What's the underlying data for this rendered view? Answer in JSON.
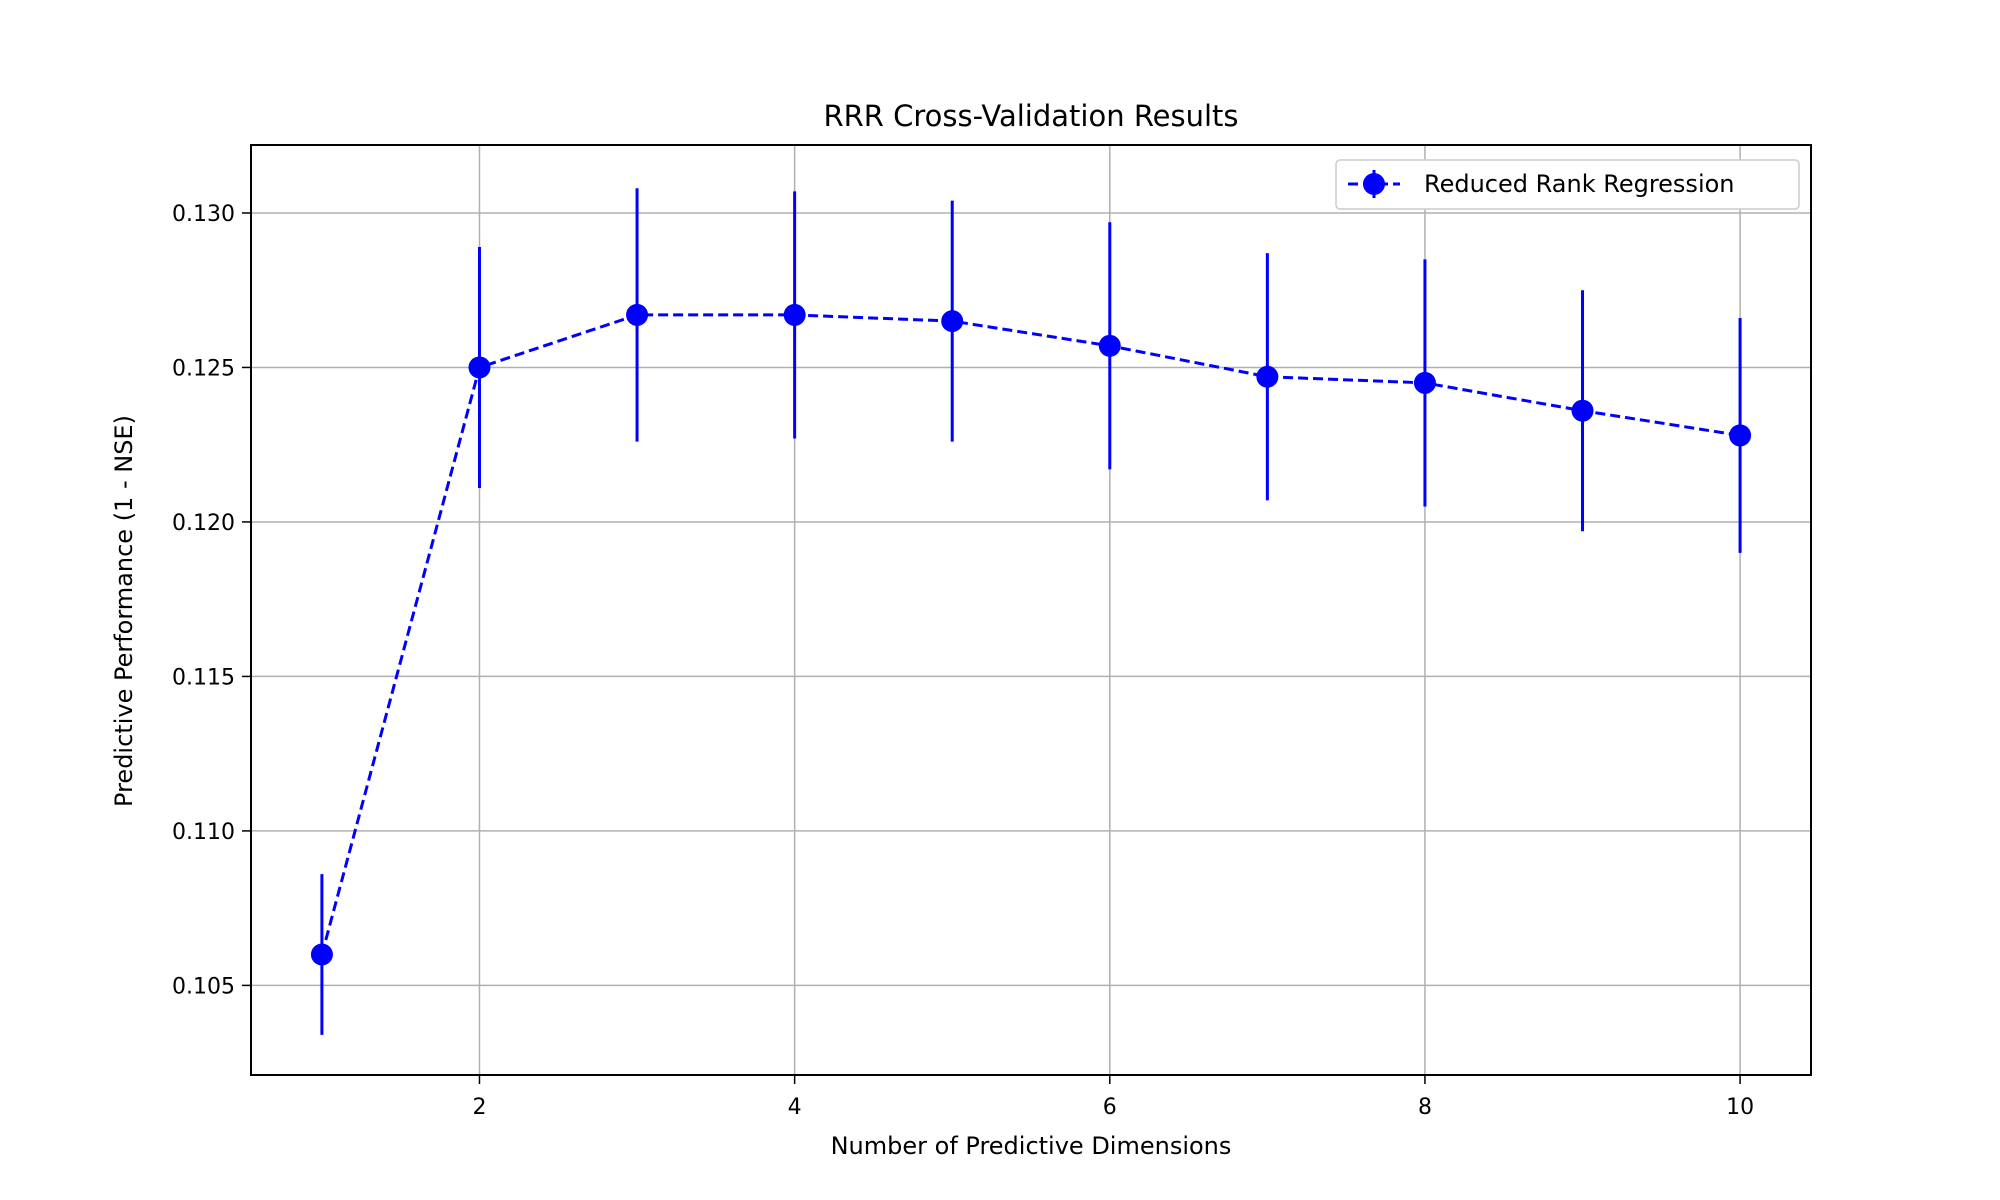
{
  "chart_data": {
    "type": "line",
    "title": "RRR Cross-Validation Results",
    "xlabel": "Number of Predictive Dimensions",
    "ylabel": "Predictive Performance (1 - NSE)",
    "xlim": [
      0.55,
      10.45
    ],
    "ylim": [
      0.1021,
      0.1322
    ],
    "x_ticks": [
      2,
      4,
      6,
      8,
      10
    ],
    "y_ticks": [
      0.105,
      0.11,
      0.115,
      0.12,
      0.125,
      0.13
    ],
    "y_tick_labels": [
      "0.105",
      "0.110",
      "0.115",
      "0.120",
      "0.125",
      "0.130"
    ],
    "grid": true,
    "legend_position": "top-right",
    "series": [
      {
        "name": "Reduced Rank Regression",
        "color": "#0000ff",
        "line_style": "dashed",
        "marker": "circle",
        "x": [
          1,
          2,
          3,
          4,
          5,
          6,
          7,
          8,
          9,
          10
        ],
        "y": [
          0.106,
          0.125,
          0.1267,
          0.1267,
          0.1265,
          0.1257,
          0.1247,
          0.1245,
          0.1236,
          0.1228
        ],
        "error": [
          0.0026,
          0.0039,
          0.0041,
          0.004,
          0.0039,
          0.004,
          0.004,
          0.004,
          0.0039,
          0.0038
        ]
      }
    ]
  }
}
